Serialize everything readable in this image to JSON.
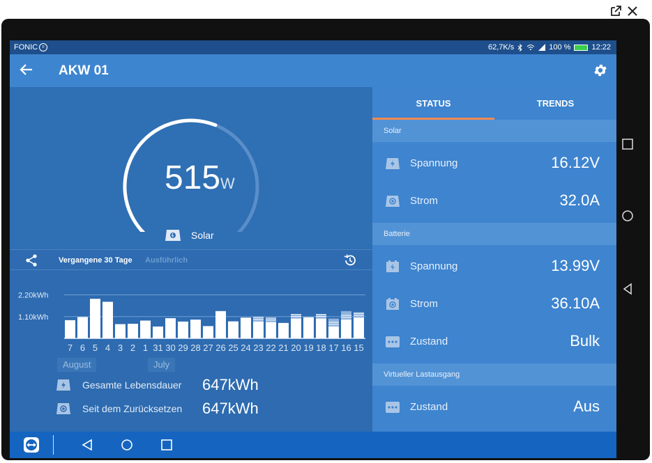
{
  "statusbar": {
    "carrier": "FONIC",
    "carrier_badge": "F",
    "speed": "62,7K/s",
    "battery_pct": "100 %",
    "time": "12:22"
  },
  "appbar": {
    "title": "AKW 01"
  },
  "gauge": {
    "value": "515",
    "unit": "W",
    "source_label": "Solar",
    "fraction": 0.58
  },
  "history": {
    "tab_active": "Vergangene 30 Tage",
    "tab_inactive": "Ausführlich"
  },
  "chart_data": {
    "type": "bar",
    "ytick_labels": [
      "2.20kWh",
      "1.10kWh"
    ],
    "yticks": [
      2.2,
      1.1
    ],
    "ylim": [
      0,
      2.5
    ],
    "categories": [
      "7",
      "6",
      "5",
      "4",
      "3",
      "2",
      "1",
      "31",
      "30",
      "29",
      "28",
      "27",
      "26",
      "25",
      "24",
      "23",
      "22",
      "21",
      "20",
      "19",
      "18",
      "17",
      "16",
      "15"
    ],
    "values": [
      0.92,
      1.08,
      2.0,
      1.85,
      0.72,
      0.74,
      0.9,
      0.6,
      1.02,
      0.85,
      0.95,
      0.62,
      1.38,
      0.86,
      1.05,
      0.85,
      0.82,
      0.78,
      1.0,
      1.07,
      1.0,
      0.6,
      0.95,
      1.05
    ],
    "overlay": [
      0,
      0,
      0,
      0,
      0,
      0,
      0,
      0,
      0,
      0,
      0,
      0,
      0,
      0,
      0,
      0.82,
      0.82,
      0,
      0.84,
      0,
      0.96,
      0.8,
      1.18,
      1.12
    ],
    "months": [
      "August",
      "July"
    ],
    "legend": false,
    "grid": true
  },
  "stats": {
    "lifetime_label": "Gesamte Lebensdauer",
    "lifetime_value": "647kWh",
    "reset_label": "Seit dem Zurücksetzen",
    "reset_value": "647kWh"
  },
  "right": {
    "tab_status": "STATUS",
    "tab_trends": "TRENDS",
    "sections": {
      "solar": "Solar",
      "battery": "Batterie",
      "virtual": "Virtueller Lastausgang"
    },
    "solar_voltage_label": "Spannung",
    "solar_voltage_value": "16.12V",
    "solar_current_label": "Strom",
    "solar_current_value": "32.0A",
    "batt_voltage_label": "Spannung",
    "batt_voltage_value": "13.99V",
    "batt_current_label": "Strom",
    "batt_current_value": "36.10A",
    "batt_state_label": "Zustand",
    "batt_state_value": "Bulk",
    "virt_state_label": "Zustand",
    "virt_state_value": "Aus"
  },
  "colors": {
    "appbar": "#3e85d0",
    "screen_bg": "#2e6bb0",
    "accent_orange": "#f08a50",
    "navbar": "#1565c0"
  }
}
